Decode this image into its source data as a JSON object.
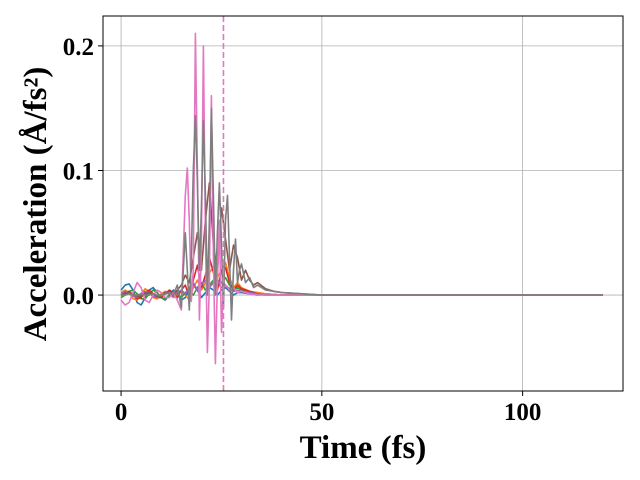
{
  "chart_data": {
    "type": "line",
    "title": "",
    "xlabel": "Time (fs)",
    "ylabel": "Acceleration (Å/fs²)",
    "xlim": [
      -4.5,
      125
    ],
    "ylim": [
      -0.077,
      0.224
    ],
    "xticks": [
      0,
      50,
      100
    ],
    "yticks": [
      0.0,
      0.1,
      0.2
    ],
    "xtick_labels": [
      "0",
      "50",
      "100"
    ],
    "ytick_labels": [
      "0.0",
      "0.1",
      "0.2"
    ],
    "grid": true,
    "legend": "none",
    "vline": {
      "x": 25.5,
      "style": "dashed",
      "color": "#e377c2"
    },
    "series": [
      {
        "color": "#1f77b4",
        "x": [
          0,
          1,
          2,
          3,
          4,
          5,
          6,
          7,
          8,
          9,
          10,
          11,
          12,
          13,
          14,
          15,
          16,
          17,
          18,
          19,
          20,
          21,
          22,
          23,
          24,
          25,
          26,
          27,
          28,
          29,
          30,
          32,
          34,
          36,
          40,
          45,
          50,
          60,
          80,
          100,
          120
        ],
        "y": [
          0.004,
          0.008,
          0.009,
          0.004,
          -0.006,
          -0.008,
          -0.002,
          0.004,
          0.006,
          0.002,
          -0.002,
          -0.004,
          0.0,
          0.004,
          0.002,
          -0.004,
          -0.002,
          0.005,
          0.008,
          0.004,
          -0.002,
          0.002,
          0.006,
          0.004,
          0.0,
          0.004,
          0.006,
          0.003,
          0.0,
          0.002,
          0.002,
          0.001,
          0.0,
          0.001,
          0.0,
          0.0,
          0.0,
          0.0,
          0.0,
          0.0,
          0.0
        ]
      },
      {
        "color": "#ff7f0e",
        "x": [
          0,
          1,
          2,
          3,
          4,
          5,
          6,
          7,
          8,
          9,
          10,
          11,
          12,
          13,
          14,
          15,
          16,
          17,
          18,
          19,
          20,
          21,
          22,
          23,
          24,
          25,
          26,
          27,
          28,
          29,
          30,
          32,
          34,
          36,
          40,
          45,
          50,
          60,
          80,
          100,
          120
        ],
        "y": [
          0.002,
          0.004,
          0.002,
          -0.003,
          -0.004,
          0.001,
          0.005,
          0.003,
          -0.002,
          -0.003,
          0.001,
          0.003,
          0.001,
          -0.002,
          0.0,
          0.004,
          0.0,
          -0.004,
          0.006,
          0.012,
          0.004,
          0.01,
          0.018,
          0.022,
          0.014,
          0.02,
          0.026,
          0.014,
          0.006,
          0.01,
          0.006,
          0.003,
          0.002,
          0.001,
          0.0,
          0.0,
          0.0,
          0.0,
          0.0,
          0.0,
          0.0
        ]
      },
      {
        "color": "#2ca02c",
        "x": [
          0,
          1,
          2,
          3,
          4,
          5,
          6,
          7,
          8,
          9,
          10,
          11,
          12,
          13,
          14,
          15,
          16,
          17,
          18,
          19,
          20,
          21,
          22,
          23,
          24,
          25,
          26,
          27,
          28,
          29,
          30,
          32,
          34,
          36,
          40,
          45,
          50,
          60,
          80,
          100,
          120
        ],
        "y": [
          -0.002,
          0.0,
          0.003,
          0.004,
          0.001,
          -0.003,
          -0.003,
          0.001,
          0.004,
          0.002,
          -0.002,
          -0.003,
          0.0,
          0.003,
          0.001,
          -0.002,
          0.002,
          0.004,
          0.0,
          0.006,
          0.01,
          0.004,
          0.008,
          0.012,
          0.006,
          0.01,
          0.014,
          0.008,
          0.004,
          0.006,
          0.004,
          0.002,
          0.001,
          0.0,
          0.0,
          0.0,
          0.0,
          0.0,
          0.0,
          0.0,
          0.0
        ]
      },
      {
        "color": "#d62728",
        "x": [
          0,
          1,
          2,
          3,
          4,
          5,
          6,
          7,
          8,
          9,
          10,
          11,
          12,
          13,
          14,
          15,
          16,
          17,
          18,
          19,
          20,
          21,
          22,
          23,
          24,
          25,
          26,
          27,
          28,
          29,
          30,
          32,
          34,
          36,
          40,
          45,
          50,
          60,
          80,
          100,
          120
        ],
        "y": [
          0.0,
          0.002,
          0.003,
          0.0,
          -0.003,
          -0.002,
          0.002,
          0.004,
          0.001,
          -0.002,
          -0.002,
          0.001,
          0.004,
          0.002,
          -0.002,
          0.004,
          0.008,
          -0.002,
          0.012,
          0.024,
          0.006,
          0.016,
          0.03,
          0.018,
          0.004,
          0.02,
          0.022,
          0.01,
          0.004,
          0.008,
          0.005,
          0.003,
          0.001,
          0.0,
          0.0,
          0.0,
          0.0,
          0.0,
          0.0,
          0.0,
          0.0
        ]
      },
      {
        "color": "#9467bd",
        "x": [
          0,
          1,
          2,
          3,
          4,
          5,
          6,
          7,
          8,
          9,
          10,
          11,
          12,
          13,
          14,
          15,
          16,
          17,
          18,
          19,
          20,
          21,
          22,
          23,
          24,
          25,
          26,
          27,
          28,
          29,
          30,
          32,
          34,
          36,
          40,
          45,
          50,
          60,
          80,
          100,
          120
        ],
        "y": [
          0.001,
          0.003,
          0.002,
          -0.001,
          -0.002,
          0.001,
          0.003,
          0.002,
          -0.001,
          -0.002,
          0.0,
          0.002,
          0.001,
          -0.001,
          0.002,
          0.004,
          0.001,
          0.006,
          0.01,
          0.004,
          0.008,
          0.012,
          0.006,
          0.01,
          0.012,
          0.006,
          0.008,
          0.005,
          0.003,
          0.004,
          0.003,
          0.002,
          0.001,
          0.0,
          0.0,
          0.0,
          0.0,
          0.0,
          0.0,
          0.0,
          0.0
        ]
      },
      {
        "color": "#8c564b",
        "x": [
          0,
          1,
          2,
          3,
          4,
          5,
          6,
          7,
          8,
          9,
          10,
          11,
          12,
          13,
          14,
          15,
          16,
          17,
          18,
          19,
          20,
          21,
          22,
          23,
          24,
          25,
          26,
          27,
          28,
          29,
          30,
          31,
          32,
          33,
          34,
          36,
          38,
          40,
          45,
          50,
          60,
          80,
          100,
          120
        ],
        "y": [
          0.0,
          0.001,
          0.002,
          0.001,
          -0.001,
          -0.001,
          0.001,
          0.002,
          0.001,
          -0.001,
          0.0,
          0.002,
          0.003,
          0.0,
          0.004,
          0.008,
          0.016,
          0.01,
          0.03,
          0.05,
          0.02,
          0.06,
          0.09,
          0.04,
          0.02,
          0.07,
          0.045,
          0.02,
          0.04,
          0.03,
          0.012,
          0.02,
          0.012,
          0.008,
          0.01,
          0.005,
          0.003,
          0.002,
          0.001,
          0.0,
          0.0,
          0.0,
          0.0,
          0.0
        ]
      },
      {
        "color": "#e377c2",
        "x": [
          0,
          1,
          2,
          3,
          4,
          5,
          6,
          7,
          8,
          9,
          10,
          11,
          12,
          13,
          14,
          15,
          16,
          16.5,
          17,
          17.5,
          18,
          18.5,
          19,
          19.5,
          20,
          20.5,
          21,
          21.5,
          22,
          22.5,
          23,
          23.5,
          24,
          24.5,
          25,
          25.5,
          26,
          27,
          28,
          29,
          30,
          32,
          34,
          36,
          40,
          45,
          50,
          60,
          80,
          100,
          120
        ],
        "y": [
          -0.004,
          -0.008,
          -0.006,
          0.002,
          0.01,
          0.006,
          -0.004,
          -0.006,
          0.0,
          0.004,
          0.002,
          -0.002,
          -0.002,
          0.002,
          -0.004,
          -0.012,
          0.08,
          0.102,
          0.06,
          -0.005,
          0.02,
          0.21,
          0.1,
          -0.02,
          0.04,
          0.2,
          0.05,
          -0.046,
          0.01,
          0.16,
          0.03,
          -0.055,
          0.01,
          0.06,
          -0.03,
          0.01,
          0.008,
          0.004,
          0.006,
          0.002,
          0.003,
          0.001,
          0.0,
          0.0,
          0.0,
          0.0,
          0.0,
          0.0,
          0.0,
          0.0,
          0.0
        ]
      },
      {
        "color": "#7f7f7f",
        "x": [
          0,
          1,
          2,
          3,
          4,
          5,
          6,
          7,
          8,
          9,
          10,
          11,
          12,
          13,
          14,
          15,
          15.5,
          16,
          16.5,
          17,
          17.5,
          18,
          18.5,
          19,
          19.5,
          20,
          20.5,
          21,
          21.5,
          22,
          22.5,
          23,
          23.5,
          24,
          24.5,
          25,
          25.5,
          26,
          26.5,
          27,
          27.5,
          28,
          28.5,
          29,
          29.5,
          30,
          31,
          32,
          33,
          34,
          36,
          38,
          40,
          45,
          50,
          60,
          80,
          100,
          120
        ],
        "y": [
          0.0,
          0.0,
          0.001,
          0.0,
          0.0,
          0.001,
          0.0,
          0.0,
          0.001,
          0.0,
          0.0,
          0.001,
          0.002,
          0.0,
          0.008,
          -0.01,
          0.02,
          0.05,
          0.02,
          -0.012,
          0.03,
          0.1,
          0.144,
          0.09,
          0.02,
          0.07,
          0.14,
          0.08,
          0.0,
          0.06,
          0.15,
          0.08,
          0.0,
          0.05,
          0.09,
          0.04,
          -0.01,
          0.06,
          0.08,
          0.03,
          -0.02,
          0.02,
          0.045,
          0.01,
          0.02,
          0.025,
          0.01,
          0.014,
          0.006,
          0.008,
          0.004,
          0.003,
          0.002,
          0.001,
          0.0,
          0.0,
          0.0,
          0.0,
          0.0
        ]
      }
    ]
  }
}
